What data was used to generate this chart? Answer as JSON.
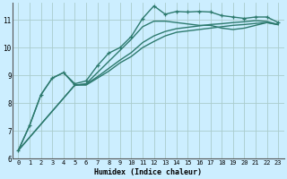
{
  "xlabel": "Humidex (Indice chaleur)",
  "bg_color": "#cceeff",
  "grid_color": "#aacccc",
  "line_color": "#2d7a6e",
  "xlim": [
    -0.5,
    23.5
  ],
  "ylim": [
    6.0,
    11.6
  ],
  "yticks": [
    6,
    7,
    8,
    9,
    10,
    11
  ],
  "xticks": [
    0,
    1,
    2,
    3,
    4,
    5,
    6,
    7,
    8,
    9,
    10,
    11,
    12,
    13,
    14,
    15,
    16,
    17,
    18,
    19,
    20,
    21,
    22,
    23
  ],
  "series": [
    {
      "x": [
        0,
        1,
        2,
        3,
        4,
        5,
        6,
        7,
        8,
        9,
        10,
        11,
        12,
        13,
        14,
        15,
        16,
        17,
        18,
        19,
        20,
        21,
        22,
        23
      ],
      "y": [
        6.3,
        7.2,
        8.3,
        8.9,
        9.1,
        8.7,
        8.8,
        9.35,
        9.8,
        10.0,
        10.4,
        11.05,
        11.5,
        11.2,
        11.3,
        11.28,
        11.3,
        11.28,
        11.15,
        11.1,
        11.05,
        11.1,
        11.1,
        10.9
      ],
      "marker": true,
      "lw": 1.0
    },
    {
      "x": [
        0,
        1,
        2,
        3,
        4,
        5,
        6,
        7,
        8,
        9,
        10,
        11,
        12,
        13,
        14,
        15,
        16,
        17,
        18,
        19,
        20,
        21,
        22,
        23
      ],
      "y": [
        6.3,
        7.2,
        8.3,
        8.9,
        9.1,
        8.65,
        8.7,
        9.1,
        9.5,
        9.9,
        10.3,
        10.75,
        10.95,
        10.95,
        10.9,
        10.85,
        10.8,
        10.8,
        10.7,
        10.65,
        10.7,
        10.8,
        10.9,
        10.82
      ],
      "marker": false,
      "lw": 1.0
    },
    {
      "x": [
        0,
        5,
        6,
        7,
        8,
        9,
        10,
        11,
        12,
        13,
        14,
        15,
        16,
        17,
        18,
        19,
        20,
        21,
        22,
        23
      ],
      "y": [
        6.3,
        8.65,
        8.65,
        8.9,
        9.15,
        9.45,
        9.68,
        10.0,
        10.22,
        10.42,
        10.55,
        10.6,
        10.65,
        10.7,
        10.75,
        10.8,
        10.83,
        10.87,
        10.9,
        10.83
      ],
      "marker": false,
      "lw": 1.0
    },
    {
      "x": [
        0,
        5,
        6,
        7,
        8,
        9,
        10,
        11,
        12,
        13,
        14,
        15,
        16,
        17,
        18,
        19,
        20,
        21,
        22,
        23
      ],
      "y": [
        6.3,
        8.65,
        8.68,
        8.95,
        9.25,
        9.55,
        9.82,
        10.18,
        10.42,
        10.58,
        10.68,
        10.73,
        10.78,
        10.83,
        10.86,
        10.9,
        10.93,
        10.97,
        10.94,
        10.83
      ],
      "marker": false,
      "lw": 1.0
    }
  ]
}
